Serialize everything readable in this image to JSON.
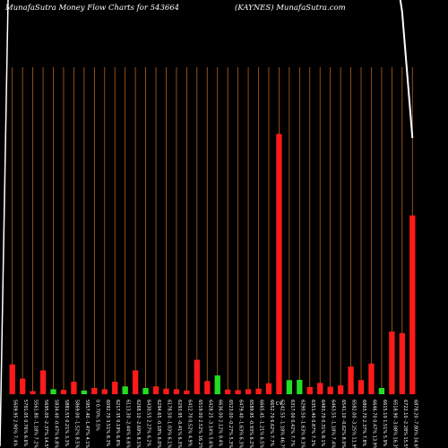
{
  "header": {
    "left": "MunafaSutra  Money Flow  Charts for 543664",
    "right": "(KAYNES) MunafaSutra.com"
  },
  "colors": {
    "background": "#000000",
    "grid": "#b8621c",
    "up": "#22dd22",
    "down": "#ff1a1a",
    "price_line": "#ffffff",
    "label": "#ffffff"
  },
  "chart_data": {
    "type": "bar",
    "title": "",
    "xlabel": "",
    "ylabel": "",
    "categories": [
      "5609.95 2.90% 7.4%",
      "5701.05 0.76% 6.6%",
      "5561.80 -1.18% 7.2%",
      "5695.00 -2.37% 14.5%",
      "5834.40 -0.47% 6.8%",
      "5881.55 0.21% 3.3%",
      "5869.00 -1.52% 8.5%",
      "5957.40 -1.47% 4.1%",
      "0 0.70% 5.5%",
      "6092.70 3.51% 8.3%",
      "6217.35 0.19% 6.8%",
      "6113.30 -2.44% 6.6%",
      "6268.10 -2.69% 8.1%",
      "6430.55 2.27% 6.2%",
      "6294.65 -0.18% 6.0%",
      "6178.50 -1.03% 6.1%",
      "6293.95 -0.41% 6.3%",
      "6412.70 0.52% 4.9%",
      "6519.00 2.52% 16.2%",
      "6428.25 -3.14% 5.6%",
      "6636.00 2.12% 9.4%",
      "6523.00 -0.27% 5.3%",
      "6479.40 -1.63% 6.3%",
      "6589.95 -0.93% 6.2%",
      "6665.45 -1.21% 6.5%",
      "6652.70 6.62% 7.7%",
      "6242.55 -1.18% 46.7%",
      "6317.00 0.42% 7.7%",
      "6290.50 -1.63% 8.3%",
      "6351.40 0.87% 7.3%",
      "6483.70 0.31% 8.1%",
      "6463.55 -1.18% 7.4%",
      "6541.10 -0.62% 8.0%",
      "6582.00 -3.25% 11.9%",
      "6803.70 2.37% 7.8%",
      "6646.70 0.47% 13.9%",
      "6615.10 1.51% 5.9%",
      "6518.90 -3.08% 16.3%",
      "6722.10 -2.28% 15.5%",
      "6878.20 -7.80% 34.6%"
    ],
    "series": [
      {
        "values": [
          9.5,
          5.0,
          1.0,
          7.6,
          1.6,
          1.4,
          4.0,
          1.2,
          2.0,
          1.6,
          4.0,
          2.5,
          7.6,
          2.0,
          2.5,
          1.8,
          1.6,
          1.2,
          11.0,
          4.2,
          6.0,
          1.5,
          1.3,
          1.6,
          1.8,
          3.5,
          83.0,
          4.5,
          4.6,
          2.3,
          3.6,
          2.4,
          2.8,
          8.8,
          4.5,
          9.8,
          2.0,
          20.0,
          19.5,
          57.0
        ],
        "colors": [
          "red",
          "red",
          "red",
          "red",
          "green",
          "red",
          "red",
          "green",
          "red",
          "red",
          "red",
          "green",
          "red",
          "green",
          "red",
          "red",
          "red",
          "red",
          "red",
          "red",
          "green",
          "red",
          "red",
          "red",
          "red",
          "red",
          "red",
          "green",
          "green",
          "red",
          "red",
          "red",
          "red",
          "red",
          "red",
          "red",
          "green",
          "red",
          "red",
          "red"
        ]
      }
    ],
    "price_line": {
      "label": "",
      "values": [
        7500,
        6990,
        6985,
        6988,
        6990,
        6995,
        6992,
        6990,
        6988,
        6990,
        6993,
        6995,
        6990,
        6988,
        6985,
        6990,
        6992,
        6994,
        6995,
        6993,
        6990,
        6992,
        6995,
        6993,
        6991,
        6989,
        6995,
        6990,
        6988,
        6987,
        6985,
        6983,
        6980,
        6976,
        6978,
        6975,
        6960,
        6920,
        6795,
        6560
      ],
      "visible_min": 6500,
      "visible_max": 6800
    },
    "extra_labels": [
      {
        "after_index": 25,
        "text": "C"
      },
      {
        "after_index": 25,
        "text": "V"
      }
    ],
    "ylim": [
      0,
      100
    ],
    "grid": true,
    "legend": "none"
  }
}
